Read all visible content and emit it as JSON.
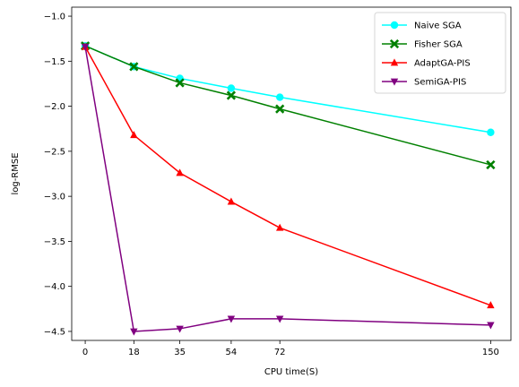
{
  "chart_data": {
    "type": "line",
    "xlabel": "CPU time(S)",
    "ylabel": "log-RMSE",
    "x": [
      0,
      18,
      35,
      54,
      72,
      150
    ],
    "xticks": [
      0,
      18,
      35,
      54,
      72,
      150
    ],
    "xlim": [
      -5,
      157.5
    ],
    "ylim": [
      -4.6,
      -0.9
    ],
    "yticks": [
      -4.5,
      -4.0,
      -3.5,
      -3.0,
      -2.5,
      -2.0,
      -1.5,
      -1.0
    ],
    "ytick_labels": [
      "−4.5",
      "−4.0",
      "−3.5",
      "−3.0",
      "−2.5",
      "−2.0",
      "−1.5",
      "−1.0"
    ],
    "grid": false,
    "legend_position": "top-right",
    "series": [
      {
        "name": "Naive SGA",
        "color": "#00ffff",
        "marker": "circle",
        "values": [
          -1.33,
          -1.56,
          -1.69,
          -1.8,
          -1.9,
          -2.29
        ]
      },
      {
        "name": "Fisher SGA",
        "color": "#008000",
        "marker": "x-filled",
        "values": [
          -1.33,
          -1.56,
          -1.74,
          -1.88,
          -2.03,
          -2.65
        ]
      },
      {
        "name": "AdaptGA-PIS",
        "color": "#ff0000",
        "marker": "triangle-up",
        "values": [
          -1.34,
          -2.32,
          -2.74,
          -3.06,
          -3.35,
          -4.21
        ]
      },
      {
        "name": "SemiGA-PIS",
        "color": "#800080",
        "marker": "triangle-down",
        "values": [
          -1.34,
          -4.5,
          -4.47,
          -4.36,
          -4.36,
          -4.43
        ]
      }
    ]
  }
}
